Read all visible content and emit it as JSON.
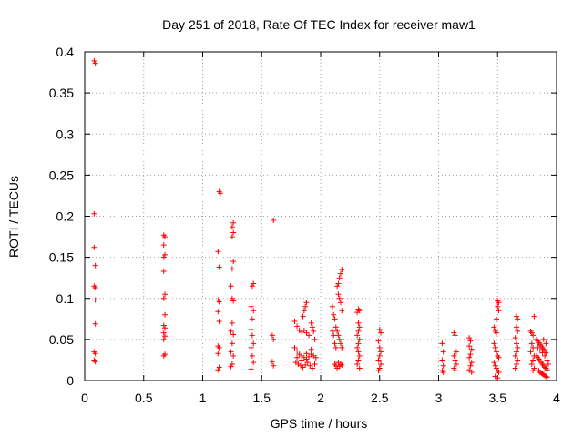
{
  "chart_data": {
    "type": "scatter",
    "title": "Day 251 of 2018, Rate Of TEC Index for receiver maw1",
    "xlabel": "GPS time / hours",
    "ylabel": "ROTI / TECUs",
    "xlim": [
      0,
      4
    ],
    "ylim": [
      0,
      0.4
    ],
    "xticks": [
      0,
      0.5,
      1,
      1.5,
      2,
      2.5,
      3,
      3.5,
      4
    ],
    "xtick_labels": [
      "0",
      "0.5",
      "1",
      "1.5",
      "2",
      "2.5",
      "3",
      "3.5",
      "4"
    ],
    "yticks": [
      0,
      0.05,
      0.1,
      0.15,
      0.2,
      0.25,
      0.3,
      0.35,
      0.4
    ],
    "ytick_labels": [
      "0",
      "0.05",
      "0.1",
      "0.15",
      "0.2",
      "0.25",
      "0.3",
      "0.35",
      "0.4"
    ],
    "grid": true,
    "marker": "+",
    "color": "#ff0000",
    "series": [
      {
        "name": "ROTI",
        "points": [
          [
            0.08,
            0.389
          ],
          [
            0.09,
            0.386
          ],
          [
            0.08,
            0.203
          ],
          [
            0.08,
            0.162
          ],
          [
            0.09,
            0.14
          ],
          [
            0.08,
            0.115
          ],
          [
            0.09,
            0.113
          ],
          [
            0.09,
            0.098
          ],
          [
            0.09,
            0.069
          ],
          [
            0.08,
            0.035
          ],
          [
            0.09,
            0.033
          ],
          [
            0.08,
            0.025
          ],
          [
            0.09,
            0.023
          ],
          [
            0.67,
            0.177
          ],
          [
            0.68,
            0.175
          ],
          [
            0.67,
            0.165
          ],
          [
            0.68,
            0.153
          ],
          [
            0.67,
            0.15
          ],
          [
            0.67,
            0.133
          ],
          [
            0.68,
            0.105
          ],
          [
            0.67,
            0.1
          ],
          [
            0.68,
            0.08
          ],
          [
            0.67,
            0.067
          ],
          [
            0.68,
            0.064
          ],
          [
            0.67,
            0.058
          ],
          [
            0.68,
            0.054
          ],
          [
            0.67,
            0.05
          ],
          [
            0.68,
            0.032
          ],
          [
            0.67,
            0.03
          ],
          [
            1.14,
            0.23
          ],
          [
            1.15,
            0.228
          ],
          [
            1.13,
            0.157
          ],
          [
            1.14,
            0.138
          ],
          [
            1.13,
            0.098
          ],
          [
            1.14,
            0.096
          ],
          [
            1.13,
            0.084
          ],
          [
            1.14,
            0.072
          ],
          [
            1.13,
            0.042
          ],
          [
            1.14,
            0.04
          ],
          [
            1.13,
            0.033
          ],
          [
            1.14,
            0.016
          ],
          [
            1.13,
            0.013
          ],
          [
            1.26,
            0.192
          ],
          [
            1.25,
            0.187
          ],
          [
            1.26,
            0.18
          ],
          [
            1.25,
            0.175
          ],
          [
            1.26,
            0.145
          ],
          [
            1.25,
            0.136
          ],
          [
            1.24,
            0.115
          ],
          [
            1.25,
            0.1
          ],
          [
            1.26,
            0.097
          ],
          [
            1.25,
            0.07
          ],
          [
            1.24,
            0.06
          ],
          [
            1.26,
            0.056
          ],
          [
            1.25,
            0.045
          ],
          [
            1.24,
            0.035
          ],
          [
            1.26,
            0.03
          ],
          [
            1.25,
            0.02
          ],
          [
            1.24,
            0.017
          ],
          [
            1.43,
            0.118
          ],
          [
            1.42,
            0.115
          ],
          [
            1.41,
            0.09
          ],
          [
            1.43,
            0.085
          ],
          [
            1.42,
            0.075
          ],
          [
            1.41,
            0.062
          ],
          [
            1.42,
            0.055
          ],
          [
            1.43,
            0.045
          ],
          [
            1.41,
            0.04
          ],
          [
            1.42,
            0.03
          ],
          [
            1.43,
            0.022
          ],
          [
            1.41,
            0.014
          ],
          [
            1.6,
            0.195
          ],
          [
            1.59,
            0.055
          ],
          [
            1.6,
            0.05
          ],
          [
            1.59,
            0.023
          ],
          [
            1.6,
            0.018
          ],
          [
            1.78,
            0.072
          ],
          [
            1.8,
            0.066
          ],
          [
            1.82,
            0.061
          ],
          [
            1.84,
            0.059
          ],
          [
            1.86,
            0.061
          ],
          [
            1.88,
            0.058
          ],
          [
            1.9,
            0.055
          ],
          [
            1.78,
            0.04
          ],
          [
            1.8,
            0.036
          ],
          [
            1.82,
            0.032
          ],
          [
            1.84,
            0.03
          ],
          [
            1.86,
            0.028
          ],
          [
            1.88,
            0.026
          ],
          [
            1.9,
            0.029
          ],
          [
            1.92,
            0.032
          ],
          [
            1.94,
            0.03
          ],
          [
            1.96,
            0.028
          ],
          [
            1.79,
            0.022
          ],
          [
            1.81,
            0.02
          ],
          [
            1.83,
            0.018
          ],
          [
            1.85,
            0.016
          ],
          [
            1.87,
            0.019
          ],
          [
            1.89,
            0.022
          ],
          [
            1.91,
            0.018
          ],
          [
            1.93,
            0.015
          ],
          [
            1.95,
            0.02
          ],
          [
            1.8,
            0.028
          ],
          [
            1.84,
            0.025
          ],
          [
            1.88,
            0.033
          ],
          [
            1.92,
            0.038
          ],
          [
            1.87,
            0.09
          ],
          [
            1.88,
            0.095
          ],
          [
            1.86,
            0.085
          ],
          [
            1.85,
            0.078
          ],
          [
            1.92,
            0.07
          ],
          [
            1.93,
            0.065
          ],
          [
            1.94,
            0.06
          ],
          [
            1.95,
            0.05
          ],
          [
            2.1,
            0.09
          ],
          [
            2.11,
            0.08
          ],
          [
            2.12,
            0.075
          ],
          [
            2.13,
            0.065
          ],
          [
            2.1,
            0.06
          ],
          [
            2.11,
            0.055
          ],
          [
            2.12,
            0.045
          ],
          [
            2.13,
            0.04
          ],
          [
            2.14,
            0.115
          ],
          [
            2.15,
            0.118
          ],
          [
            2.16,
            0.125
          ],
          [
            2.17,
            0.13
          ],
          [
            2.18,
            0.135
          ],
          [
            2.15,
            0.105
          ],
          [
            2.16,
            0.1
          ],
          [
            2.17,
            0.095
          ],
          [
            2.18,
            0.085
          ],
          [
            2.14,
            0.06
          ],
          [
            2.15,
            0.055
          ],
          [
            2.16,
            0.05
          ],
          [
            2.17,
            0.045
          ],
          [
            2.18,
            0.04
          ],
          [
            2.12,
            0.02
          ],
          [
            2.13,
            0.018
          ],
          [
            2.14,
            0.015
          ],
          [
            2.15,
            0.022
          ],
          [
            2.16,
            0.017
          ],
          [
            2.17,
            0.02
          ],
          [
            2.18,
            0.019
          ],
          [
            2.32,
            0.087
          ],
          [
            2.33,
            0.085
          ],
          [
            2.31,
            0.083
          ],
          [
            2.32,
            0.07
          ],
          [
            2.33,
            0.065
          ],
          [
            2.32,
            0.06
          ],
          [
            2.31,
            0.055
          ],
          [
            2.33,
            0.05
          ],
          [
            2.32,
            0.045
          ],
          [
            2.31,
            0.04
          ],
          [
            2.32,
            0.035
          ],
          [
            2.33,
            0.03
          ],
          [
            2.32,
            0.025
          ],
          [
            2.31,
            0.02
          ],
          [
            2.33,
            0.015
          ],
          [
            2.5,
            0.062
          ],
          [
            2.51,
            0.058
          ],
          [
            2.49,
            0.048
          ],
          [
            2.5,
            0.04
          ],
          [
            2.51,
            0.035
          ],
          [
            2.5,
            0.03
          ],
          [
            2.49,
            0.025
          ],
          [
            2.51,
            0.02
          ],
          [
            2.5,
            0.015
          ],
          [
            2.49,
            0.012
          ],
          [
            3.03,
            0.045
          ],
          [
            3.04,
            0.035
          ],
          [
            3.03,
            0.025
          ],
          [
            3.04,
            0.018
          ],
          [
            3.03,
            0.012
          ],
          [
            3.04,
            0.01
          ],
          [
            3.13,
            0.058
          ],
          [
            3.14,
            0.055
          ],
          [
            3.15,
            0.035
          ],
          [
            3.13,
            0.03
          ],
          [
            3.14,
            0.025
          ],
          [
            3.15,
            0.02
          ],
          [
            3.13,
            0.015
          ],
          [
            3.14,
            0.012
          ],
          [
            3.26,
            0.052
          ],
          [
            3.27,
            0.048
          ],
          [
            3.26,
            0.042
          ],
          [
            3.28,
            0.038
          ],
          [
            3.27,
            0.032
          ],
          [
            3.26,
            0.028
          ],
          [
            3.28,
            0.022
          ],
          [
            3.27,
            0.018
          ],
          [
            3.26,
            0.013
          ],
          [
            3.28,
            0.01
          ],
          [
            3.47,
            0.065
          ],
          [
            3.48,
            0.06
          ],
          [
            3.49,
            0.058
          ],
          [
            3.5,
            0.097
          ],
          [
            3.51,
            0.095
          ],
          [
            3.5,
            0.09
          ],
          [
            3.51,
            0.085
          ],
          [
            3.49,
            0.075
          ],
          [
            3.47,
            0.045
          ],
          [
            3.48,
            0.04
          ],
          [
            3.49,
            0.035
          ],
          [
            3.5,
            0.03
          ],
          [
            3.51,
            0.028
          ],
          [
            3.47,
            0.022
          ],
          [
            3.48,
            0.018
          ],
          [
            3.49,
            0.015
          ],
          [
            3.5,
            0.012
          ],
          [
            3.51,
            0.01
          ],
          [
            3.48,
            0.005
          ],
          [
            3.5,
            0.003
          ],
          [
            3.66,
            0.078
          ],
          [
            3.67,
            0.075
          ],
          [
            3.66,
            0.065
          ],
          [
            3.67,
            0.06
          ],
          [
            3.65,
            0.052
          ],
          [
            3.66,
            0.045
          ],
          [
            3.67,
            0.04
          ],
          [
            3.66,
            0.035
          ],
          [
            3.65,
            0.03
          ],
          [
            3.67,
            0.025
          ],
          [
            3.66,
            0.02
          ],
          [
            3.65,
            0.015
          ],
          [
            3.78,
            0.06
          ],
          [
            3.79,
            0.058
          ],
          [
            3.8,
            0.055
          ],
          [
            3.79,
            0.045
          ],
          [
            3.8,
            0.04
          ],
          [
            3.78,
            0.035
          ],
          [
            3.81,
            0.03
          ],
          [
            3.8,
            0.025
          ],
          [
            3.79,
            0.02
          ],
          [
            3.81,
            0.015
          ],
          [
            3.8,
            0.012
          ],
          [
            3.81,
            0.078
          ],
          [
            3.83,
            0.05
          ],
          [
            3.84,
            0.048
          ],
          [
            3.85,
            0.046
          ],
          [
            3.86,
            0.044
          ],
          [
            3.87,
            0.042
          ],
          [
            3.88,
            0.04
          ],
          [
            3.89,
            0.038
          ],
          [
            3.9,
            0.036
          ],
          [
            3.91,
            0.034
          ],
          [
            3.83,
            0.03
          ],
          [
            3.84,
            0.028
          ],
          [
            3.85,
            0.026
          ],
          [
            3.86,
            0.024
          ],
          [
            3.87,
            0.022
          ],
          [
            3.88,
            0.02
          ],
          [
            3.89,
            0.018
          ],
          [
            3.9,
            0.016
          ],
          [
            3.91,
            0.015
          ],
          [
            3.92,
            0.013
          ],
          [
            3.85,
            0.012
          ],
          [
            3.86,
            0.01
          ],
          [
            3.87,
            0.009
          ],
          [
            3.88,
            0.008
          ],
          [
            3.89,
            0.007
          ],
          [
            3.9,
            0.006
          ],
          [
            3.91,
            0.005
          ],
          [
            3.92,
            0.004
          ],
          [
            3.84,
            0.04
          ],
          [
            3.86,
            0.036
          ],
          [
            3.88,
            0.034
          ],
          [
            3.9,
            0.03
          ],
          [
            3.92,
            0.025
          ],
          [
            3.93,
            0.02
          ],
          [
            3.91,
            0.045
          ],
          [
            3.89,
            0.05
          ]
        ]
      }
    ]
  }
}
